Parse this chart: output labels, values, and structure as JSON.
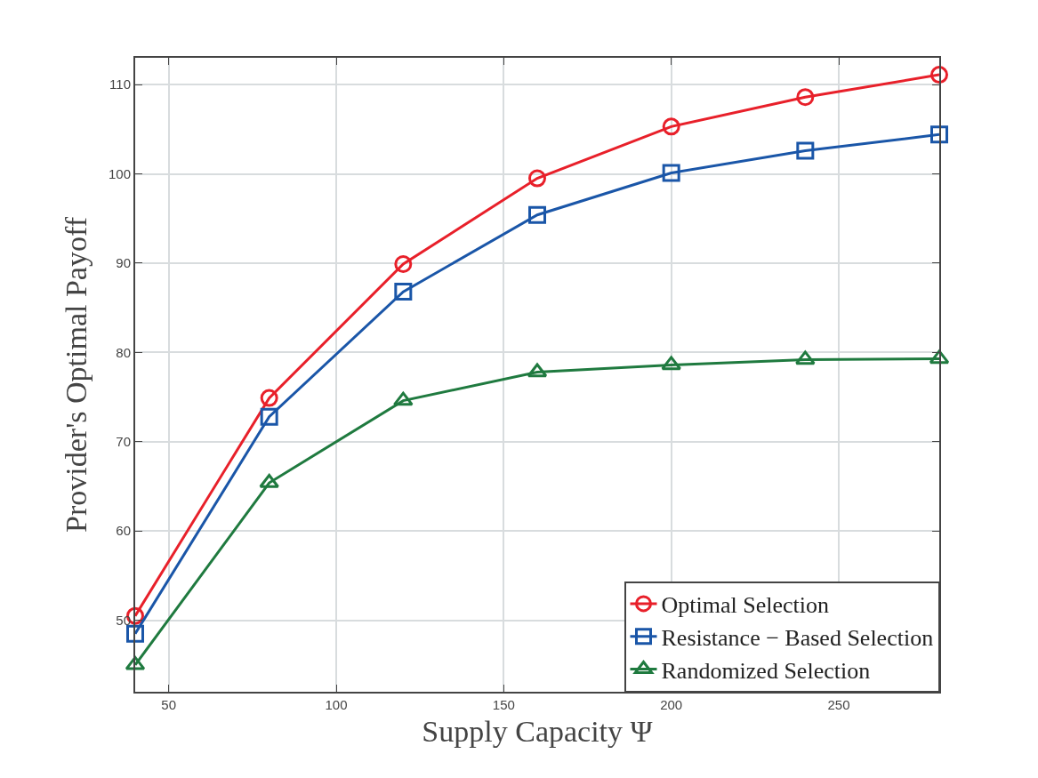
{
  "chart_data": {
    "type": "line",
    "xlabel": "Supply Capacity Ψ",
    "ylabel": "Provider's Optimal Payoff",
    "x": [
      40,
      80,
      120,
      160,
      200,
      240,
      280
    ],
    "series": [
      {
        "name": "Optimal Selection",
        "color": "#e8202a",
        "marker": "circle",
        "values": [
          50.5,
          74.9,
          89.9,
          99.5,
          105.3,
          108.6,
          111.1
        ]
      },
      {
        "name": "Resistance − Based Selection",
        "color": "#1a56a8",
        "marker": "square",
        "values": [
          48.5,
          72.8,
          86.8,
          95.4,
          100.1,
          102.6,
          104.4
        ]
      },
      {
        "name": "Randomized Selection",
        "color": "#1f7a3f",
        "marker": "triangle",
        "values": [
          45.0,
          65.4,
          74.6,
          77.8,
          78.6,
          79.2,
          79.3
        ]
      }
    ],
    "xlim": [
      40,
      280
    ],
    "ylim": [
      42,
      113
    ],
    "xticks": [
      50,
      100,
      150,
      200,
      250
    ],
    "yticks": [
      50,
      60,
      70,
      80,
      90,
      100,
      110
    ],
    "grid": true,
    "legend": "bottom right",
    "line_style": "solid"
  }
}
